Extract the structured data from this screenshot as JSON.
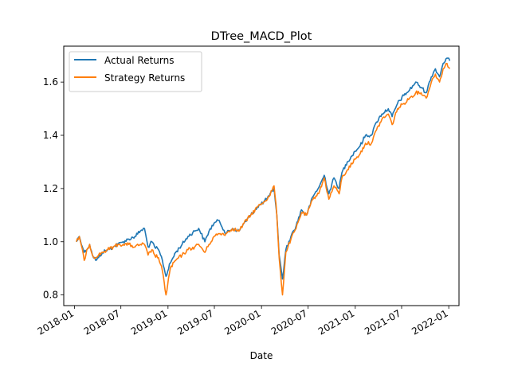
{
  "chart_data": {
    "type": "line",
    "title": "DTree_MACD_Plot",
    "xlabel": "Date",
    "ylabel": "",
    "x_tick_labels": [
      "2018-01",
      "2018-07",
      "2019-01",
      "2019-07",
      "2020-01",
      "2020-07",
      "2021-01",
      "2021-07",
      "2022-01"
    ],
    "y_ticks": [
      0.8,
      1.0,
      1.2,
      1.4,
      1.6
    ],
    "y_tick_labels": [
      "0.8",
      "1.0",
      "1.2",
      "1.4",
      "1.6"
    ],
    "xlim": [
      "2017-11-20",
      "2022-02-10"
    ],
    "ylim": [
      0.76,
      1.735
    ],
    "grid": false,
    "legend_position": "upper-left",
    "colors": {
      "actual": "#1f77b4",
      "strategy": "#ff7f0e"
    },
    "series": [
      {
        "name": "Actual Returns",
        "x": [
          "2018-01-08",
          "2018-01-20",
          "2018-02-08",
          "2018-02-18",
          "2018-03-01",
          "2018-03-12",
          "2018-03-25",
          "2018-04-05",
          "2018-04-20",
          "2018-05-10",
          "2018-06-01",
          "2018-06-20",
          "2018-07-10",
          "2018-08-01",
          "2018-08-25",
          "2018-09-15",
          "2018-10-01",
          "2018-10-15",
          "2018-10-30",
          "2018-11-10",
          "2018-11-25",
          "2018-12-10",
          "2018-12-24",
          "2019-01-10",
          "2019-01-31",
          "2019-02-25",
          "2019-03-20",
          "2019-04-15",
          "2019-05-01",
          "2019-05-25",
          "2019-06-10",
          "2019-06-30",
          "2019-07-20",
          "2019-08-15",
          "2019-09-10",
          "2019-10-05",
          "2019-10-25",
          "2019-11-20",
          "2019-12-15",
          "2020-01-10",
          "2020-01-31",
          "2020-02-19",
          "2020-03-01",
          "2020-03-10",
          "2020-03-23",
          "2020-04-05",
          "2020-04-25",
          "2020-05-15",
          "2020-06-05",
          "2020-06-25",
          "2020-07-20",
          "2020-08-15",
          "2020-09-02",
          "2020-09-20",
          "2020-10-10",
          "2020-10-30",
          "2020-11-10",
          "2020-12-01",
          "2020-12-31",
          "2021-01-20",
          "2021-02-10",
          "2021-03-05",
          "2021-03-25",
          "2021-04-15",
          "2021-05-10",
          "2021-05-25",
          "2021-06-15",
          "2021-07-10",
          "2021-08-01",
          "2021-08-25",
          "2021-09-15",
          "2021-10-05",
          "2021-10-25",
          "2021-11-10",
          "2021-11-26",
          "2021-12-10",
          "2021-12-25",
          "2022-01-05"
        ],
        "y": [
          1.0,
          1.02,
          0.96,
          0.97,
          0.99,
          0.95,
          0.93,
          0.94,
          0.96,
          0.97,
          0.98,
          0.99,
          1.0,
          1.01,
          1.02,
          1.04,
          1.05,
          0.98,
          1.0,
          0.98,
          0.97,
          0.93,
          0.87,
          0.92,
          0.96,
          0.99,
          1.02,
          1.04,
          1.05,
          1.0,
          1.04,
          1.07,
          1.08,
          1.03,
          1.05,
          1.04,
          1.07,
          1.1,
          1.13,
          1.15,
          1.17,
          1.2,
          1.1,
          0.95,
          0.86,
          0.97,
          1.02,
          1.06,
          1.12,
          1.1,
          1.17,
          1.21,
          1.25,
          1.18,
          1.24,
          1.2,
          1.26,
          1.3,
          1.34,
          1.36,
          1.4,
          1.4,
          1.45,
          1.48,
          1.5,
          1.47,
          1.52,
          1.55,
          1.57,
          1.6,
          1.58,
          1.56,
          1.62,
          1.65,
          1.62,
          1.67,
          1.69,
          1.68
        ]
      },
      {
        "name": "Strategy Returns",
        "x": [
          "2018-01-08",
          "2018-01-20",
          "2018-02-08",
          "2018-02-18",
          "2018-03-01",
          "2018-03-12",
          "2018-03-25",
          "2018-04-05",
          "2018-04-20",
          "2018-05-10",
          "2018-06-01",
          "2018-06-20",
          "2018-07-10",
          "2018-08-01",
          "2018-08-25",
          "2018-09-15",
          "2018-10-01",
          "2018-10-15",
          "2018-10-30",
          "2018-11-10",
          "2018-11-25",
          "2018-12-10",
          "2018-12-24",
          "2019-01-10",
          "2019-01-31",
          "2019-02-25",
          "2019-03-20",
          "2019-04-15",
          "2019-05-01",
          "2019-05-25",
          "2019-06-10",
          "2019-06-30",
          "2019-07-20",
          "2019-08-15",
          "2019-09-10",
          "2019-10-05",
          "2019-10-25",
          "2019-11-20",
          "2019-12-15",
          "2020-01-10",
          "2020-01-31",
          "2020-02-19",
          "2020-03-01",
          "2020-03-10",
          "2020-03-23",
          "2020-04-05",
          "2020-04-25",
          "2020-05-15",
          "2020-06-05",
          "2020-06-25",
          "2020-07-20",
          "2020-08-15",
          "2020-09-02",
          "2020-09-20",
          "2020-10-10",
          "2020-10-30",
          "2020-11-10",
          "2020-12-01",
          "2020-12-31",
          "2021-01-20",
          "2021-02-10",
          "2021-03-05",
          "2021-03-25",
          "2021-04-15",
          "2021-05-10",
          "2021-05-25",
          "2021-06-15",
          "2021-07-10",
          "2021-08-01",
          "2021-08-25",
          "2021-09-15",
          "2021-10-05",
          "2021-10-25",
          "2021-11-10",
          "2021-11-26",
          "2021-12-10",
          "2021-12-25",
          "2022-01-05"
        ],
        "y": [
          1.0,
          1.02,
          0.93,
          0.97,
          0.99,
          0.95,
          0.94,
          0.95,
          0.96,
          0.97,
          0.98,
          0.99,
          0.99,
          0.99,
          0.98,
          0.99,
          0.99,
          0.95,
          0.97,
          0.95,
          0.94,
          0.89,
          0.8,
          0.9,
          0.93,
          0.95,
          0.97,
          0.98,
          0.99,
          0.96,
          0.99,
          1.02,
          1.03,
          1.03,
          1.05,
          1.04,
          1.07,
          1.1,
          1.13,
          1.15,
          1.17,
          1.21,
          1.1,
          0.94,
          0.8,
          0.96,
          1.01,
          1.05,
          1.11,
          1.1,
          1.16,
          1.19,
          1.24,
          1.16,
          1.21,
          1.18,
          1.24,
          1.27,
          1.31,
          1.33,
          1.37,
          1.37,
          1.42,
          1.46,
          1.48,
          1.44,
          1.5,
          1.52,
          1.54,
          1.56,
          1.56,
          1.54,
          1.6,
          1.63,
          1.6,
          1.65,
          1.67,
          1.65
        ]
      }
    ]
  }
}
